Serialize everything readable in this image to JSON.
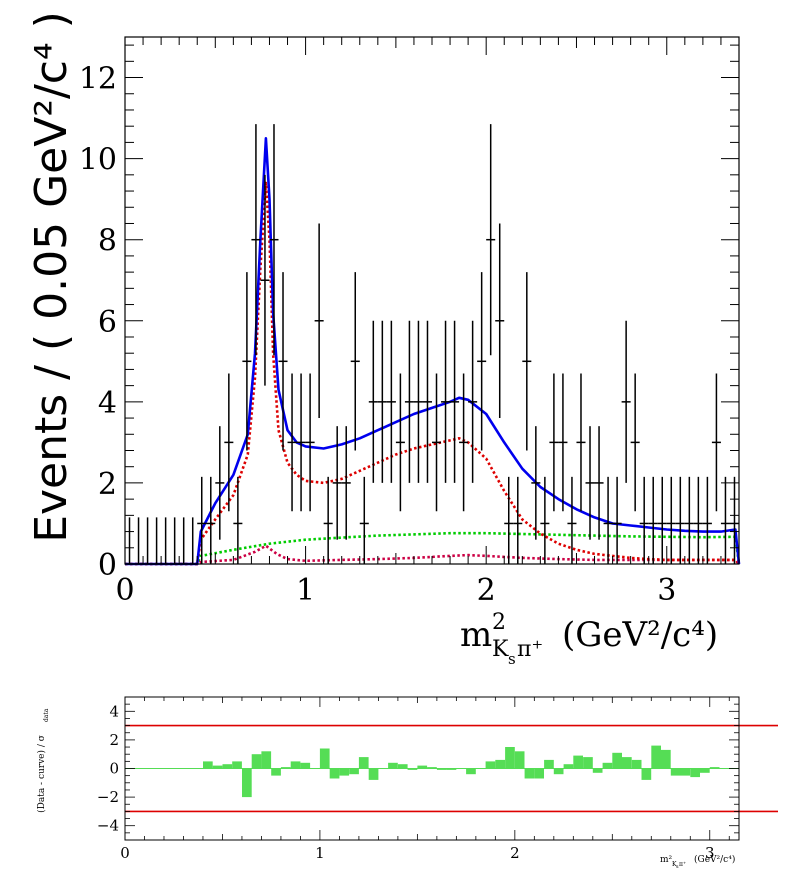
{
  "chart_data": [
    {
      "type": "scatter",
      "panel": "main",
      "ylabel": "Events / ( 0.05 GeV²/c⁴ )",
      "xlabel_main": "m",
      "xlabel_sup": "2",
      "xlabel_sub": "K",
      "xlabel_subsub": "s",
      "xlabel_subpi": "π⁺",
      "xlabel_units": "(GeV²/c⁴)",
      "xlim": [
        0,
        3.4
      ],
      "ylim": [
        0,
        13
      ],
      "xticks": [
        0,
        1,
        2,
        3
      ],
      "xtick_labels": [
        "0",
        "1",
        "2",
        "3"
      ],
      "yticks": [
        0,
        2,
        4,
        6,
        8,
        10,
        12
      ],
      "ytick_labels": [
        "0",
        "2",
        "4",
        "6",
        "8",
        "10",
        "12"
      ],
      "data_points": {
        "name": "data",
        "x": [
          0.025,
          0.075,
          0.125,
          0.175,
          0.225,
          0.275,
          0.325,
          0.375,
          0.425,
          0.475,
          0.525,
          0.575,
          0.625,
          0.675,
          0.725,
          0.775,
          0.825,
          0.875,
          0.925,
          0.975,
          1.025,
          1.075,
          1.125,
          1.175,
          1.225,
          1.275,
          1.325,
          1.375,
          1.425,
          1.475,
          1.525,
          1.575,
          1.625,
          1.675,
          1.725,
          1.775,
          1.825,
          1.875,
          1.925,
          1.975,
          2.025,
          2.075,
          2.125,
          2.175,
          2.225,
          2.275,
          2.325,
          2.375,
          2.425,
          2.475,
          2.525,
          2.575,
          2.625,
          2.675,
          2.725,
          2.775,
          2.825,
          2.875,
          2.925,
          2.975,
          3.025,
          3.075,
          3.125,
          3.175,
          3.225,
          3.275,
          3.325,
          3.375
        ],
        "y": [
          0,
          0,
          0,
          0,
          0,
          0,
          0,
          0,
          1,
          1,
          2,
          3,
          1,
          5,
          8,
          7,
          8,
          5,
          3,
          3,
          3,
          6,
          1,
          2,
          2,
          5,
          1,
          4,
          4,
          4,
          3,
          4,
          4,
          4,
          3,
          4,
          4,
          3,
          4,
          5,
          8,
          6,
          1,
          1,
          5,
          2,
          1,
          3,
          3,
          1,
          3,
          2,
          2,
          1,
          1,
          4,
          3,
          1,
          1,
          1,
          1,
          1,
          1,
          1,
          1,
          3,
          1,
          1
        ],
        "yerr": [
          1.15,
          1.15,
          1.15,
          1.15,
          1.15,
          1.15,
          1.15,
          1.15,
          1.15,
          1.15,
          1.4,
          1.7,
          1.15,
          2.2,
          2.85,
          2.6,
          2.85,
          2.2,
          1.7,
          1.7,
          1.7,
          2.4,
          1.15,
          1.4,
          1.4,
          2.2,
          1.15,
          2.0,
          2.0,
          2.0,
          1.7,
          2.0,
          2.0,
          2.0,
          1.7,
          2.0,
          2.0,
          1.7,
          2.0,
          2.2,
          2.85,
          2.4,
          1.15,
          1.15,
          2.2,
          1.4,
          1.15,
          1.7,
          1.7,
          1.15,
          1.7,
          1.4,
          1.4,
          1.15,
          1.15,
          2.0,
          1.7,
          1.15,
          1.15,
          1.15,
          1.15,
          1.15,
          1.15,
          1.15,
          1.15,
          1.7,
          1.15,
          1.15
        ]
      },
      "curves": [
        {
          "name": "total",
          "color": "#0000ee",
          "style": "solid",
          "x": [
            0,
            0.4,
            0.42,
            0.5,
            0.6,
            0.68,
            0.72,
            0.75,
            0.78,
            0.8,
            0.82,
            0.85,
            0.9,
            0.95,
            1.0,
            1.1,
            1.2,
            1.3,
            1.4,
            1.5,
            1.6,
            1.7,
            1.8,
            1.85,
            1.9,
            2.0,
            2.1,
            2.2,
            2.3,
            2.4,
            2.5,
            2.6,
            2.7,
            2.8,
            2.9,
            3.0,
            3.1,
            3.2,
            3.3,
            3.38,
            3.4
          ],
          "y": [
            0,
            0,
            0.8,
            1.5,
            2.2,
            3.2,
            5.2,
            8.0,
            10.5,
            9.0,
            6.2,
            4.3,
            3.3,
            3.0,
            2.9,
            2.85,
            2.95,
            3.1,
            3.3,
            3.5,
            3.7,
            3.85,
            4.0,
            4.1,
            4.05,
            3.7,
            3.0,
            2.35,
            1.9,
            1.6,
            1.35,
            1.15,
            1.0,
            0.95,
            0.9,
            0.85,
            0.82,
            0.8,
            0.8,
            0.85,
            0
          ]
        },
        {
          "name": "signal",
          "color": "#dd0000",
          "style": "dotted",
          "x": [
            0,
            0.4,
            0.42,
            0.5,
            0.6,
            0.68,
            0.72,
            0.75,
            0.78,
            0.8,
            0.82,
            0.85,
            0.9,
            0.95,
            1.0,
            1.1,
            1.2,
            1.3,
            1.4,
            1.5,
            1.6,
            1.7,
            1.8,
            1.85,
            1.9,
            2.0,
            2.1,
            2.2,
            2.3,
            2.4,
            2.5,
            2.6,
            2.7,
            2.8,
            2.9,
            3.0,
            3.1,
            3.2,
            3.3,
            3.38,
            3.4
          ],
          "y": [
            0,
            0,
            0.6,
            1.1,
            1.7,
            2.7,
            4.6,
            7.3,
            9.4,
            8.0,
            5.2,
            3.3,
            2.5,
            2.2,
            2.05,
            2.0,
            2.1,
            2.3,
            2.5,
            2.7,
            2.85,
            2.95,
            3.05,
            3.1,
            3.0,
            2.6,
            1.8,
            1.1,
            0.75,
            0.5,
            0.35,
            0.25,
            0.2,
            0.15,
            0.12,
            0.1,
            0.1,
            0.1,
            0.1,
            0.1,
            0
          ]
        },
        {
          "name": "background",
          "color": "#00cc00",
          "style": "dotted",
          "x": [
            0,
            0.4,
            0.42,
            0.6,
            0.8,
            1.0,
            1.2,
            1.4,
            1.6,
            1.8,
            2.0,
            2.2,
            2.4,
            2.6,
            2.8,
            3.0,
            3.2,
            3.38,
            3.4
          ],
          "y": [
            0,
            0,
            0.2,
            0.35,
            0.5,
            0.6,
            0.65,
            0.7,
            0.73,
            0.76,
            0.76,
            0.74,
            0.72,
            0.7,
            0.68,
            0.67,
            0.66,
            0.67,
            0
          ]
        },
        {
          "name": "component",
          "color": "#cc0044",
          "style": "dotted",
          "x": [
            0,
            0.4,
            0.42,
            0.6,
            0.72,
            0.78,
            0.84,
            0.9,
            1.0,
            1.2,
            1.4,
            1.6,
            1.8,
            1.9,
            2.0,
            2.2,
            2.4,
            2.6,
            2.8,
            3.0,
            3.2,
            3.38,
            3.4
          ],
          "y": [
            0,
            0,
            0.05,
            0.1,
            0.3,
            0.45,
            0.25,
            0.12,
            0.08,
            0.1,
            0.12,
            0.15,
            0.2,
            0.22,
            0.2,
            0.15,
            0.12,
            0.1,
            0.1,
            0.1,
            0.1,
            0.1,
            0
          ]
        }
      ]
    },
    {
      "type": "bar",
      "panel": "pull",
      "ylabel": "(Data - curve) / σ",
      "ylabel_sub": "data",
      "xlabel": "m²",
      "xlabel_sub": "K",
      "xlabel_subsub": "s",
      "xlabel_subpi": "π⁺",
      "xlabel_units": "(GeV²/c⁴)",
      "xlim": [
        0,
        3.15
      ],
      "ylim": [
        -5,
        5
      ],
      "xticks": [
        0,
        1,
        2,
        3
      ],
      "xtick_labels": [
        "0",
        "1",
        "2",
        "3"
      ],
      "yticks": [
        -4,
        -2,
        0,
        2,
        4
      ],
      "ytick_labels": [
        "−4",
        "−2",
        "0",
        "2",
        "4"
      ],
      "reference_lines": [
        3,
        -3
      ],
      "bar_color": "#55dd55",
      "line_color": "#dd0000",
      "x": [
        0.025,
        0.075,
        0.125,
        0.175,
        0.225,
        0.275,
        0.325,
        0.375,
        0.425,
        0.475,
        0.525,
        0.575,
        0.625,
        0.675,
        0.725,
        0.775,
        0.825,
        0.875,
        0.925,
        0.975,
        1.025,
        1.075,
        1.125,
        1.175,
        1.225,
        1.275,
        1.325,
        1.375,
        1.425,
        1.475,
        1.525,
        1.575,
        1.625,
        1.675,
        1.725,
        1.775,
        1.825,
        1.875,
        1.925,
        1.975,
        2.025,
        2.075,
        2.125,
        2.175,
        2.225,
        2.275,
        2.325,
        2.375,
        2.425,
        2.475,
        2.525,
        2.575,
        2.625,
        2.675,
        2.725,
        2.775,
        2.825,
        2.875,
        2.925,
        2.975,
        3.025,
        3.075,
        3.125
      ],
      "values": [
        0,
        0,
        0,
        0,
        0,
        0,
        0,
        0,
        0.5,
        0.2,
        0.3,
        0.5,
        -2.0,
        1.0,
        1.2,
        -0.5,
        0.1,
        0.5,
        0.4,
        0,
        1.4,
        -0.7,
        -0.5,
        -0.4,
        0.8,
        -0.8,
        0,
        0.4,
        0.3,
        -0.1,
        0.2,
        0.1,
        -0.1,
        -0.1,
        0,
        -0.4,
        0,
        0.5,
        0.6,
        1.5,
        1.2,
        -0.7,
        -0.7,
        0.6,
        -0.4,
        0.3,
        0.9,
        0.8,
        -0.3,
        0.4,
        1.1,
        0.8,
        0.6,
        -0.8,
        1.6,
        1.3,
        -0.5,
        -0.5,
        -0.6,
        -0.3,
        0.1,
        0,
        0
      ]
    }
  ]
}
